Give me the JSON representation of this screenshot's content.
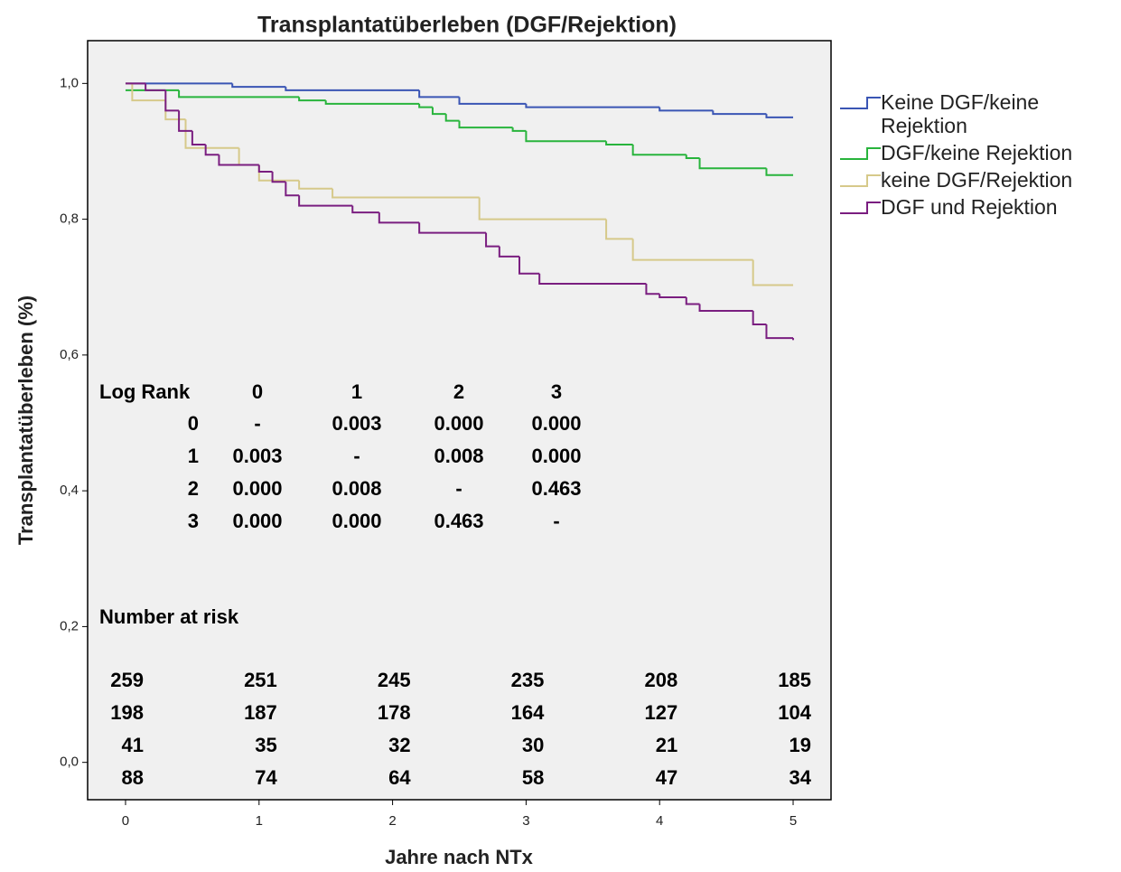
{
  "chart_data": {
    "type": "step",
    "title": "Transplantatüberleben (DGF/Rejektion)",
    "x_label": "Jahre nach NTx",
    "y_label": "Transplantatüberleben (%)",
    "xlim": [
      -0.284,
      5.284
    ],
    "ylim": [
      -0.055,
      1.063
    ],
    "xticks": [
      0,
      1,
      2,
      3,
      4,
      5
    ],
    "yticks": [
      {
        "value": 0.0,
        "label": "0,0"
      },
      {
        "value": 0.2,
        "label": "0,2"
      },
      {
        "value": 0.4,
        "label": "0,4"
      },
      {
        "value": 0.6,
        "label": "0,6"
      },
      {
        "value": 0.8,
        "label": "0,8"
      },
      {
        "value": 1.0,
        "label": "1,0"
      }
    ],
    "legend": "right",
    "series": [
      {
        "name": "Keine DGF/keine Rejektion",
        "color": "#3a55b4",
        "x": [
          0,
          0.8,
          1.2,
          2.2,
          2.5,
          3.0,
          4.0,
          4.4,
          4.8,
          5.0
        ],
        "values": [
          1.0,
          0.995,
          0.99,
          0.98,
          0.97,
          0.965,
          0.96,
          0.955,
          0.95,
          0.95
        ]
      },
      {
        "name": "DGF/keine Rejektion",
        "color": "#28b43c",
        "x": [
          0,
          0.4,
          1.3,
          1.5,
          2.2,
          2.3,
          2.4,
          2.5,
          2.9,
          3.0,
          3.6,
          3.8,
          4.2,
          4.3,
          4.8,
          5.0
        ],
        "values": [
          0.99,
          0.98,
          0.975,
          0.97,
          0.965,
          0.955,
          0.945,
          0.935,
          0.93,
          0.915,
          0.91,
          0.895,
          0.89,
          0.875,
          0.865,
          0.865
        ]
      },
      {
        "name": "keine DGF/Rejektion",
        "color": "#d6c98a",
        "x": [
          0,
          0.05,
          0.3,
          0.45,
          0.85,
          1.0,
          1.3,
          1.55,
          2.65,
          3.6,
          3.8,
          4.7,
          5.0
        ],
        "values": [
          1.0,
          0.975,
          0.947,
          0.905,
          0.88,
          0.857,
          0.845,
          0.832,
          0.8,
          0.771,
          0.74,
          0.703,
          0.703
        ]
      },
      {
        "name": "DGF und Rejektion",
        "color": "#7a1e80",
        "x": [
          0,
          0.15,
          0.3,
          0.4,
          0.5,
          0.6,
          0.7,
          1.0,
          1.1,
          1.2,
          1.3,
          1.7,
          1.9,
          2.2,
          2.7,
          2.8,
          2.95,
          3.1,
          3.9,
          4.0,
          4.2,
          4.3,
          4.7,
          4.8,
          5.0
        ],
        "values": [
          1.0,
          0.99,
          0.96,
          0.93,
          0.91,
          0.895,
          0.88,
          0.87,
          0.855,
          0.835,
          0.82,
          0.81,
          0.795,
          0.78,
          0.76,
          0.745,
          0.72,
          0.705,
          0.69,
          0.685,
          0.675,
          0.665,
          0.645,
          0.625,
          0.622
        ]
      }
    ],
    "log_rank": {
      "title": "Log Rank",
      "header": [
        "0",
        "1",
        "2",
        "3"
      ],
      "rows": [
        [
          "0",
          "-",
          "0.003",
          "0.000",
          "0.000"
        ],
        [
          "1",
          "0.003",
          "-",
          "0.008",
          "0.000"
        ],
        [
          "2",
          "0.000",
          "0.008",
          "-",
          "0.463"
        ],
        [
          "3",
          "0.000",
          "0.000",
          "0.463",
          "-"
        ]
      ]
    },
    "number_at_risk": {
      "title": "Number at risk",
      "rows": [
        [
          259,
          251,
          245,
          235,
          208,
          185
        ],
        [
          198,
          187,
          178,
          164,
          127,
          104
        ],
        [
          41,
          35,
          32,
          30,
          21,
          19
        ],
        [
          88,
          74,
          64,
          58,
          47,
          34
        ]
      ]
    }
  }
}
